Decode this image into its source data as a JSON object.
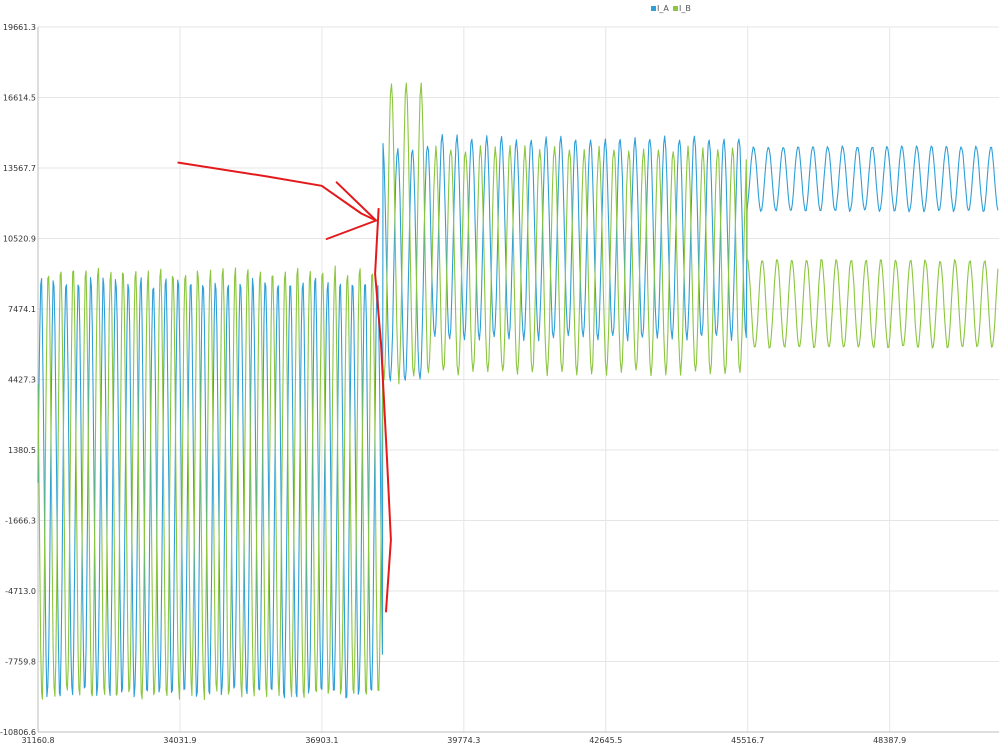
{
  "chart_data": {
    "type": "line",
    "title": "",
    "xlabel": "",
    "ylabel": "",
    "xlim": [
      31160.8,
      50600
    ],
    "ylim": [
      -10806.6,
      19661.3
    ],
    "x_ticks": [
      31160.8,
      34031.9,
      36903.1,
      39774.3,
      42645.5,
      45516.7,
      48387.9
    ],
    "x_tick_labels": [
      "31160.8",
      "34031.9",
      "36903.1",
      "39774.3",
      "42645.5",
      "45516.7",
      "48387.9"
    ],
    "y_ticks": [
      -10806.6,
      -7759.8,
      -4713.0,
      -1666.3,
      1380.5,
      4427.3,
      7474.1,
      10520.9,
      13567.7,
      16614.5,
      19661.3
    ],
    "y_tick_labels": [
      "-10806.6",
      "-7759.8",
      "-4713.0",
      "-1666.3",
      "1380.5",
      "4427.3",
      "7474.1",
      "10520.9",
      "13567.7",
      "16614.5",
      "19661.3"
    ],
    "grid": true,
    "legend_position": "top-center",
    "series": [
      {
        "name": "I_A",
        "color": "#2f9fd8",
        "segments": [
          {
            "x_start": 31160.8,
            "x_end": 38140,
            "y_min": -9300,
            "y_max": 8800,
            "period": 252
          },
          {
            "x_start": 38140,
            "x_end": 39060,
            "y_min": 4300,
            "y_max": 14500,
            "period": 300
          },
          {
            "x_start": 39060,
            "x_end": 45500,
            "y_min": 6200,
            "y_max": 14900,
            "period": 300
          },
          {
            "x_start": 45500,
            "x_end": 50600,
            "y_min": 11700,
            "y_max": 14500,
            "period": 300
          }
        ]
      },
      {
        "name": "I_B",
        "color": "#8cc63f",
        "segments": [
          {
            "x_start": 31160.8,
            "x_end": 38140,
            "y_min": -9300,
            "y_max": 9200,
            "period": 252
          },
          {
            "x_start": 38140,
            "x_end": 39060,
            "y_min": 4400,
            "y_max": 17200,
            "period": 300
          },
          {
            "x_start": 39060,
            "x_end": 45500,
            "y_min": 4700,
            "y_max": 14400,
            "period": 300
          },
          {
            "x_start": 45500,
            "x_end": 50600,
            "y_min": 5800,
            "y_max": 9600,
            "period": 300
          }
        ]
      }
    ],
    "annotations": [
      {
        "type": "freehand-arrow",
        "color": "#e31a1c",
        "points_xy": [
          [
            34000,
            13800
          ],
          [
            35800,
            13200
          ],
          [
            36900,
            12800
          ],
          [
            37700,
            11600
          ],
          [
            38000,
            11300
          ]
        ]
      },
      {
        "type": "freehand-arrow-head",
        "color": "#e31a1c",
        "points_xy": [
          [
            37200,
            12950
          ],
          [
            38000,
            11300
          ],
          [
            37000,
            10500
          ]
        ]
      },
      {
        "type": "freehand-line",
        "color": "#e31a1c",
        "points_xy": [
          [
            38050,
            11800
          ],
          [
            37980,
            9000
          ],
          [
            38100,
            6000
          ],
          [
            38220,
            1000
          ],
          [
            38300,
            -2500
          ],
          [
            38200,
            -5600
          ]
        ]
      }
    ]
  }
}
